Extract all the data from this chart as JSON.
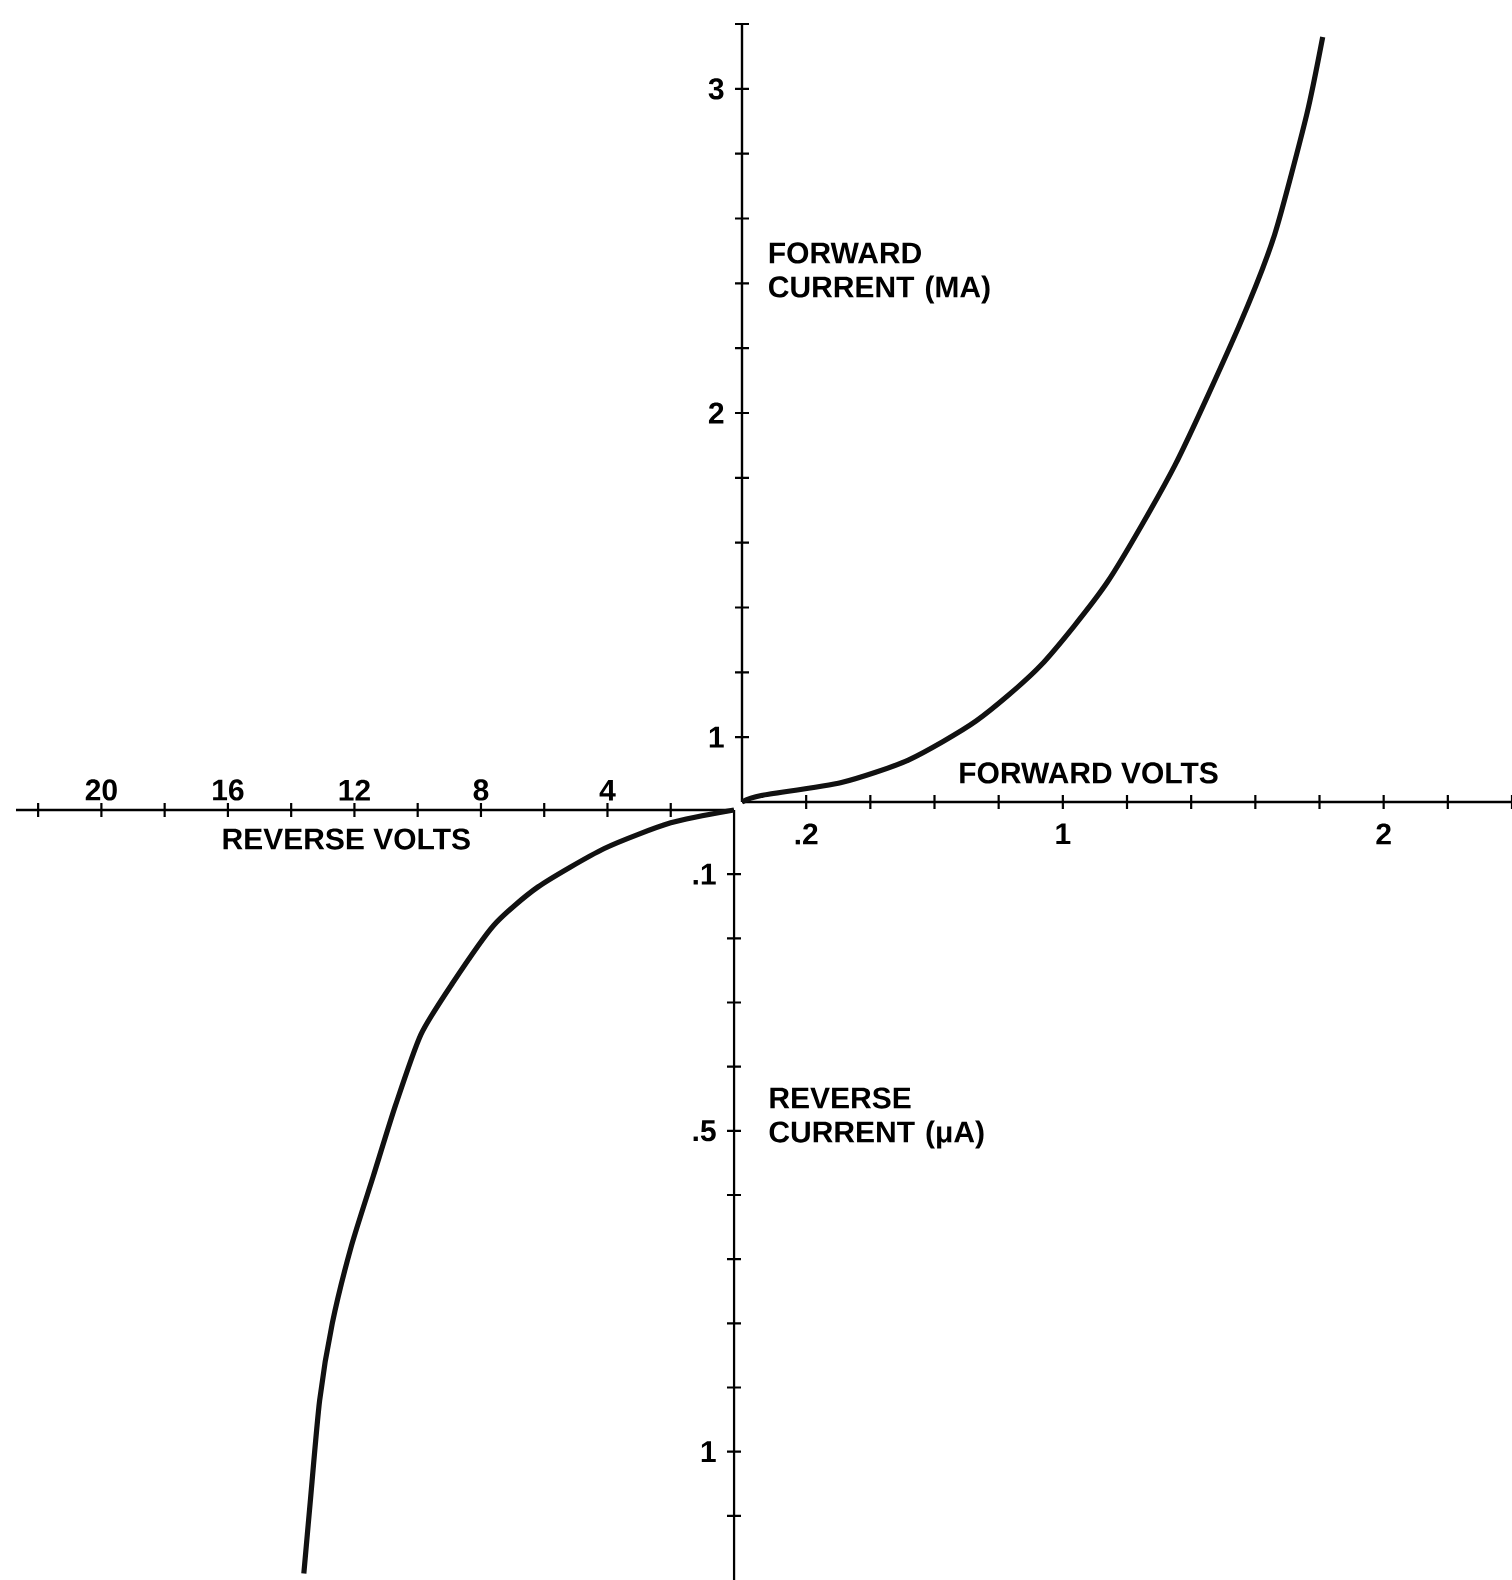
{
  "chart_data": [
    {
      "type": "line",
      "xlabel": "FORWARD VOLTS",
      "ylabel": "FORWARD CURRENT (MA)",
      "color": "#111111",
      "x": [
        0,
        0.06,
        0.31,
        0.52,
        0.73,
        0.93,
        1.14,
        1.35,
        1.55,
        1.66,
        1.76,
        1.81
      ],
      "values": [
        0.8,
        0.82,
        0.86,
        0.93,
        1.05,
        1.22,
        1.48,
        1.84,
        2.27,
        2.55,
        2.92,
        3.16
      ],
      "xlim": [
        0,
        2.4
      ],
      "ylim": [
        0.8,
        3.2
      ],
      "xticks": [
        {
          "value": 0.2,
          "label": ".2"
        },
        {
          "value": 0.4,
          "label": null
        },
        {
          "value": 0.6,
          "label": null
        },
        {
          "value": 0.8,
          "label": null
        },
        1,
        {
          "value": 1.2,
          "label": null
        },
        {
          "value": 1.4,
          "label": null
        },
        {
          "value": 1.6,
          "label": null
        },
        {
          "value": 1.8,
          "label": null
        },
        2,
        {
          "value": 2.2,
          "label": null
        },
        {
          "value": 2.4,
          "label": null
        }
      ],
      "yticks": [
        1,
        {
          "value": 1.2,
          "label": null
        },
        {
          "value": 1.4,
          "label": null
        },
        {
          "value": 1.6,
          "label": null
        },
        {
          "value": 1.8,
          "label": null
        },
        2,
        {
          "value": 2.2,
          "label": null
        },
        {
          "value": 2.4,
          "label": null
        },
        {
          "value": 2.6,
          "label": null
        },
        {
          "value": 2.8,
          "label": null
        },
        3,
        {
          "value": 3.2,
          "label": null
        }
      ]
    },
    {
      "type": "line",
      "xlabel": "REVERSE VOLTS",
      "ylabel": "REVERSE CURRENT (μA)",
      "color": "#111111",
      "x": [
        0,
        2.0,
        4.1,
        6.2,
        7.6,
        8.9,
        9.9,
        10.7,
        11.4,
        12.1,
        12.7,
        13.1,
        13.4,
        13.6
      ],
      "values": [
        0,
        0.02,
        0.06,
        0.12,
        0.18,
        0.27,
        0.35,
        0.46,
        0.57,
        0.68,
        0.8,
        0.92,
        1.08,
        1.19
      ],
      "xlim": [
        22.7,
        0
      ],
      "ylim": [
        1.2,
        0
      ],
      "xticks": [
        {
          "value": 2,
          "label": null
        },
        4,
        {
          "value": 6,
          "label": null
        },
        8,
        {
          "value": 10,
          "label": null
        },
        12,
        {
          "value": 14,
          "label": null
        },
        16,
        {
          "value": 18,
          "label": null
        },
        20,
        {
          "value": 22,
          "label": null
        }
      ],
      "yticks": [
        {
          "value": 0.1,
          "label": ".1"
        },
        {
          "value": 0.2,
          "label": null
        },
        {
          "value": 0.3,
          "label": null
        },
        {
          "value": 0.4,
          "label": null
        },
        {
          "value": 0.5,
          "label": ".5"
        },
        {
          "value": 0.6,
          "label": null
        },
        {
          "value": 0.7,
          "label": null
        },
        {
          "value": 0.8,
          "label": null
        },
        {
          "value": 0.9,
          "label": null
        },
        1,
        {
          "value": 1.1,
          "label": null
        }
      ]
    }
  ]
}
